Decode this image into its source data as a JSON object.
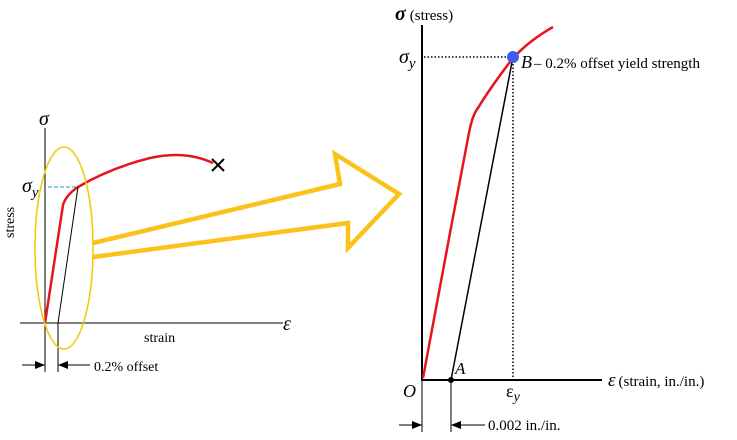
{
  "left": {
    "sigma": "σ",
    "sigma_y_main": "σ",
    "sigma_y_sub": "y",
    "epsilon": "ε",
    "ylabel": "stress",
    "xlabel": "strain",
    "offset_label": "0.2% offset"
  },
  "right": {
    "y_axis_symbol": "σ",
    "y_axis_label": "(stress)",
    "sigma_y_main": "σ",
    "sigma_y_sub": "y",
    "point_b": "B",
    "b_label": "– 0.2% offset yield strength",
    "point_a": "A",
    "origin": "O",
    "x_axis_symbol": "ε",
    "x_axis_label": "(strain, in./in.)",
    "eps_y_main": "ε",
    "eps_y_sub": "y",
    "offset_label": "0.002 in./in."
  },
  "colors": {
    "curve": "#e8141c",
    "arrow": "#fbc21a",
    "ellipse": "#f5c800",
    "yield_point": "#3e5cf0",
    "dashed_left": "#2a8fd6"
  }
}
